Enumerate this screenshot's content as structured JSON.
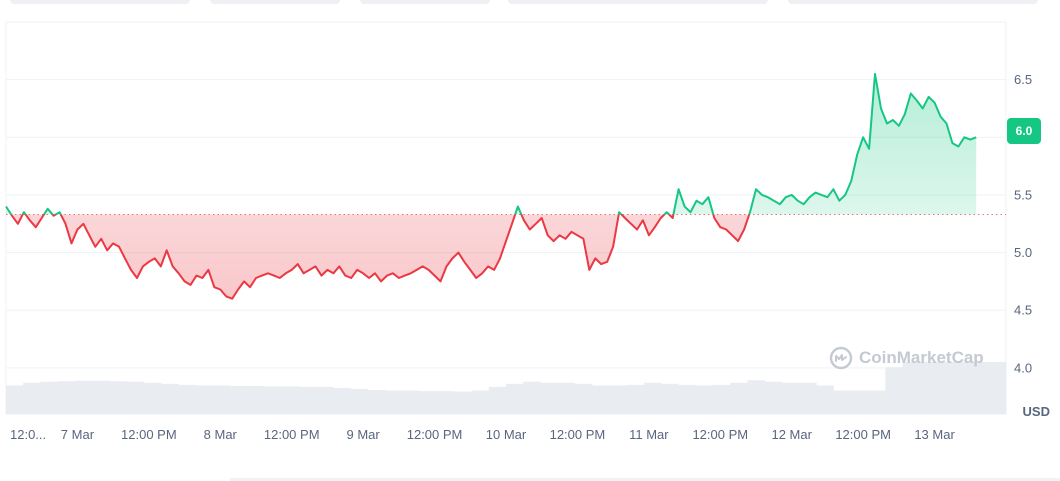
{
  "chart_data": {
    "type": "line",
    "unit": "USD",
    "current_price_label": "6.0",
    "baseline": 5.33,
    "ylim": [
      3.6,
      7.0
    ],
    "yticks": [
      {
        "value": 4.0,
        "label": "4.0"
      },
      {
        "value": 4.5,
        "label": "4.5"
      },
      {
        "value": 5.0,
        "label": "5.0"
      },
      {
        "value": 5.5,
        "label": "5.5"
      },
      {
        "value": 6.0,
        "label": "6.0"
      },
      {
        "value": 6.5,
        "label": "6.5"
      }
    ],
    "x_range_hours": [
      0,
      168
    ],
    "xticks": [
      {
        "hour": 0,
        "label": "12:0..."
      },
      {
        "hour": 12,
        "label": "7 Mar"
      },
      {
        "hour": 24,
        "label": "12:00 PM"
      },
      {
        "hour": 36,
        "label": "8 Mar"
      },
      {
        "hour": 48,
        "label": "12:00 PM"
      },
      {
        "hour": 60,
        "label": "9 Mar"
      },
      {
        "hour": 72,
        "label": "12:00 PM"
      },
      {
        "hour": 84,
        "label": "10 Mar"
      },
      {
        "hour": 96,
        "label": "12:00 PM"
      },
      {
        "hour": 108,
        "label": "11 Mar"
      },
      {
        "hour": 120,
        "label": "12:00 PM"
      },
      {
        "hour": 132,
        "label": "12 Mar"
      },
      {
        "hour": 144,
        "label": "12:00 PM"
      },
      {
        "hour": 156,
        "label": "13 Mar"
      }
    ],
    "series": [
      {
        "points": [
          [
            0,
            5.4
          ],
          [
            1,
            5.32
          ],
          [
            2,
            5.25
          ],
          [
            3,
            5.35
          ],
          [
            4,
            5.28
          ],
          [
            5,
            5.22
          ],
          [
            6,
            5.3
          ],
          [
            7,
            5.38
          ],
          [
            8,
            5.32
          ],
          [
            9,
            5.35
          ],
          [
            10,
            5.25
          ],
          [
            11,
            5.08
          ],
          [
            12,
            5.2
          ],
          [
            13,
            5.25
          ],
          [
            14,
            5.15
          ],
          [
            15,
            5.05
          ],
          [
            16,
            5.12
          ],
          [
            17,
            5.02
          ],
          [
            18,
            5.08
          ],
          [
            19,
            5.05
          ],
          [
            20,
            4.95
          ],
          [
            21,
            4.85
          ],
          [
            22,
            4.78
          ],
          [
            23,
            4.88
          ],
          [
            24,
            4.92
          ],
          [
            25,
            4.95
          ],
          [
            26,
            4.88
          ],
          [
            27,
            5.02
          ],
          [
            28,
            4.88
          ],
          [
            29,
            4.82
          ],
          [
            30,
            4.75
          ],
          [
            31,
            4.72
          ],
          [
            32,
            4.8
          ],
          [
            33,
            4.78
          ],
          [
            34,
            4.85
          ],
          [
            35,
            4.7
          ],
          [
            36,
            4.68
          ],
          [
            37,
            4.62
          ],
          [
            38,
            4.6
          ],
          [
            39,
            4.68
          ],
          [
            40,
            4.75
          ],
          [
            41,
            4.7
          ],
          [
            42,
            4.78
          ],
          [
            43,
            4.8
          ],
          [
            44,
            4.82
          ],
          [
            45,
            4.8
          ],
          [
            46,
            4.78
          ],
          [
            47,
            4.82
          ],
          [
            48,
            4.85
          ],
          [
            49,
            4.9
          ],
          [
            50,
            4.82
          ],
          [
            51,
            4.85
          ],
          [
            52,
            4.88
          ],
          [
            53,
            4.8
          ],
          [
            54,
            4.85
          ],
          [
            55,
            4.82
          ],
          [
            56,
            4.88
          ],
          [
            57,
            4.8
          ],
          [
            58,
            4.78
          ],
          [
            59,
            4.85
          ],
          [
            60,
            4.82
          ],
          [
            61,
            4.78
          ],
          [
            62,
            4.82
          ],
          [
            63,
            4.75
          ],
          [
            64,
            4.8
          ],
          [
            65,
            4.82
          ],
          [
            66,
            4.78
          ],
          [
            67,
            4.8
          ],
          [
            68,
            4.82
          ],
          [
            69,
            4.85
          ],
          [
            70,
            4.88
          ],
          [
            71,
            4.85
          ],
          [
            72,
            4.8
          ],
          [
            73,
            4.75
          ],
          [
            74,
            4.88
          ],
          [
            75,
            4.95
          ],
          [
            76,
            5.0
          ],
          [
            77,
            4.92
          ],
          [
            78,
            4.85
          ],
          [
            79,
            4.78
          ],
          [
            80,
            4.82
          ],
          [
            81,
            4.88
          ],
          [
            82,
            4.85
          ],
          [
            83,
            4.95
          ],
          [
            84,
            5.1
          ],
          [
            85,
            5.25
          ],
          [
            86,
            5.4
          ],
          [
            87,
            5.28
          ],
          [
            88,
            5.2
          ],
          [
            89,
            5.25
          ],
          [
            90,
            5.3
          ],
          [
            91,
            5.15
          ],
          [
            92,
            5.1
          ],
          [
            93,
            5.15
          ],
          [
            94,
            5.12
          ],
          [
            95,
            5.18
          ],
          [
            96,
            5.15
          ],
          [
            97,
            5.12
          ],
          [
            98,
            4.85
          ],
          [
            99,
            4.95
          ],
          [
            100,
            4.9
          ],
          [
            101,
            4.92
          ],
          [
            102,
            5.05
          ],
          [
            103,
            5.35
          ],
          [
            104,
            5.3
          ],
          [
            105,
            5.25
          ],
          [
            106,
            5.2
          ],
          [
            107,
            5.28
          ],
          [
            108,
            5.15
          ],
          [
            109,
            5.22
          ],
          [
            110,
            5.3
          ],
          [
            111,
            5.35
          ],
          [
            112,
            5.3
          ],
          [
            113,
            5.55
          ],
          [
            114,
            5.4
          ],
          [
            115,
            5.35
          ],
          [
            116,
            5.45
          ],
          [
            117,
            5.42
          ],
          [
            118,
            5.48
          ],
          [
            119,
            5.3
          ],
          [
            120,
            5.22
          ],
          [
            121,
            5.2
          ],
          [
            122,
            5.15
          ],
          [
            123,
            5.1
          ],
          [
            124,
            5.2
          ],
          [
            125,
            5.35
          ],
          [
            126,
            5.55
          ],
          [
            127,
            5.5
          ],
          [
            128,
            5.48
          ],
          [
            129,
            5.45
          ],
          [
            130,
            5.42
          ],
          [
            131,
            5.48
          ],
          [
            132,
            5.5
          ],
          [
            133,
            5.45
          ],
          [
            134,
            5.42
          ],
          [
            135,
            5.48
          ],
          [
            136,
            5.52
          ],
          [
            137,
            5.5
          ],
          [
            138,
            5.48
          ],
          [
            139,
            5.55
          ],
          [
            140,
            5.45
          ],
          [
            141,
            5.5
          ],
          [
            142,
            5.62
          ],
          [
            143,
            5.85
          ],
          [
            144,
            6.0
          ],
          [
            145,
            5.9
          ],
          [
            146,
            6.55
          ],
          [
            147,
            6.25
          ],
          [
            148,
            6.12
          ],
          [
            149,
            6.15
          ],
          [
            150,
            6.1
          ],
          [
            151,
            6.2
          ],
          [
            152,
            6.38
          ],
          [
            153,
            6.32
          ],
          [
            154,
            6.25
          ],
          [
            155,
            6.35
          ],
          [
            156,
            6.3
          ],
          [
            157,
            6.18
          ],
          [
            158,
            6.12
          ],
          [
            159,
            5.95
          ],
          [
            160,
            5.92
          ],
          [
            161,
            6.0
          ],
          [
            162,
            5.98
          ],
          [
            163,
            6.0
          ]
        ]
      }
    ],
    "volume": {
      "ylim": [
        0,
        1
      ],
      "values": [
        0.55,
        0.6,
        0.62,
        0.63,
        0.64,
        0.64,
        0.63,
        0.62,
        0.6,
        0.58,
        0.56,
        0.55,
        0.55,
        0.54,
        0.54,
        0.53,
        0.53,
        0.52,
        0.52,
        0.5,
        0.48,
        0.46,
        0.45,
        0.45,
        0.44,
        0.44,
        0.43,
        0.45,
        0.52,
        0.58,
        0.62,
        0.6,
        0.6,
        0.58,
        0.55,
        0.55,
        0.56,
        0.6,
        0.58,
        0.56,
        0.55,
        0.56,
        0.6,
        0.65,
        0.62,
        0.6,
        0.6,
        0.55,
        0.45,
        0.45,
        0.45,
        0.9,
        1.0,
        1.0,
        1.0,
        1.0,
        1.0,
        1.0
      ]
    },
    "colors": {
      "up": "#16c784",
      "down": "#ea3943",
      "grid": "#eff2f5",
      "baseline": "#ea3943",
      "axis_text": "#58667e",
      "volume": "#e9ecf0"
    },
    "grid": true
  },
  "watermark_text": "CoinMarketCap",
  "x_axis_unit": "USD"
}
